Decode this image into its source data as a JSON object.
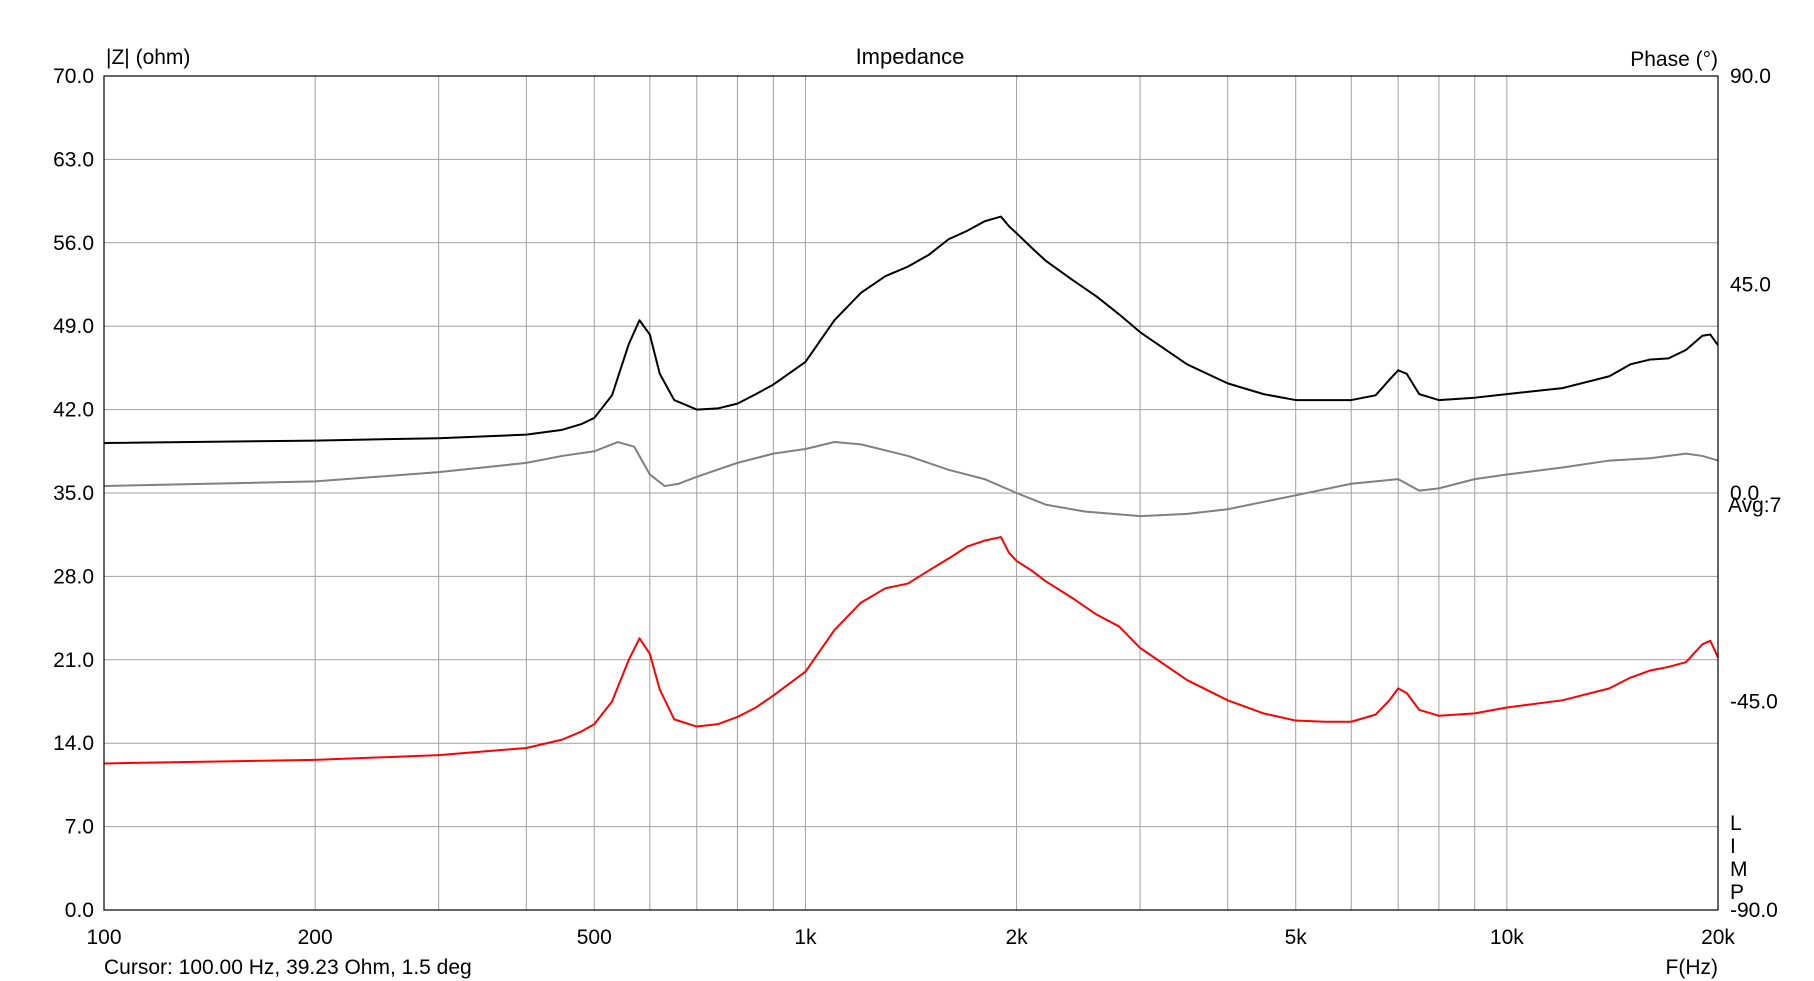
{
  "chart_data": {
    "type": "line",
    "title": "Impedance",
    "ylabel_left": "|Z| (ohm)",
    "ylabel_right": "Phase (°)",
    "xlabel": "F(Hz)",
    "x_scale": "log",
    "xlim": [
      100,
      20000
    ],
    "ylim_left": [
      0,
      70
    ],
    "ylim_right": [
      -90,
      90
    ],
    "grid": true,
    "x_ticks": [
      {
        "value": 100,
        "label": "100"
      },
      {
        "value": 200,
        "label": "200"
      },
      {
        "value": 500,
        "label": "500"
      },
      {
        "value": 1000,
        "label": "1k"
      },
      {
        "value": 2000,
        "label": "2k"
      },
      {
        "value": 5000,
        "label": "5k"
      },
      {
        "value": 10000,
        "label": "10k"
      },
      {
        "value": 20000,
        "label": "20k"
      }
    ],
    "x_minor_gridlines": [
      300,
      400,
      600,
      700,
      800,
      900,
      3000,
      4000,
      6000,
      7000,
      8000,
      9000
    ],
    "y_left_ticks": [
      "0.0",
      "7.0",
      "14.0",
      "21.0",
      "28.0",
      "35.0",
      "42.0",
      "49.0",
      "56.0",
      "63.0",
      "70.0"
    ],
    "y_right_ticks": [
      {
        "value": 90,
        "label": "90.0"
      },
      {
        "value": 45,
        "label": "45.0"
      },
      {
        "value": 0,
        "label": "0.0"
      },
      {
        "value": -45,
        "label": "-45.0"
      },
      {
        "value": -90,
        "label": "-90.0"
      }
    ],
    "avg_label": "Avg:7",
    "side_letters": [
      "L",
      "I",
      "M",
      "P"
    ],
    "cursor_text": "Cursor: 100.00 Hz, 39.23 Ohm, 1.5 deg",
    "series": [
      {
        "color": "#ff0000",
        "axis": "left",
        "x": [
          100,
          200,
          300,
          400,
          450,
          480,
          500,
          530,
          560,
          580,
          600,
          620,
          650,
          700,
          750,
          800,
          850,
          900,
          1000,
          1100,
          1200,
          1300,
          1400,
          1500,
          1600,
          1700,
          1800,
          1900,
          1950,
          2000,
          2100,
          2200,
          2400,
          2600,
          2800,
          3000,
          3500,
          4000,
          4500,
          5000,
          5500,
          6000,
          6500,
          6800,
          7000,
          7200,
          7500,
          8000,
          9000,
          10000,
          12000,
          14000,
          15000,
          16000,
          17000,
          18000,
          19000,
          19500,
          20000
        ],
        "y": [
          12.3,
          12.6,
          13.0,
          13.6,
          14.3,
          15.0,
          15.6,
          17.5,
          21.0,
          22.8,
          21.5,
          18.5,
          16.0,
          15.4,
          15.6,
          16.2,
          17.0,
          18.0,
          20.0,
          23.5,
          25.8,
          27.0,
          27.4,
          28.5,
          29.5,
          30.5,
          31.0,
          31.3,
          30.0,
          29.3,
          28.5,
          27.6,
          26.2,
          24.8,
          23.8,
          22.0,
          19.3,
          17.6,
          16.5,
          15.9,
          15.8,
          15.8,
          16.4,
          17.6,
          18.6,
          18.2,
          16.8,
          16.3,
          16.5,
          17.0,
          17.6,
          18.6,
          19.5,
          20.1,
          20.4,
          20.8,
          22.3,
          22.6,
          21.2
        ]
      },
      {
        "color": "#000000",
        "axis": "left",
        "x": [
          100,
          200,
          300,
          400,
          450,
          480,
          500,
          530,
          560,
          580,
          600,
          620,
          650,
          700,
          750,
          800,
          850,
          900,
          1000,
          1100,
          1200,
          1300,
          1400,
          1500,
          1600,
          1700,
          1800,
          1900,
          1950,
          2000,
          2100,
          2200,
          2400,
          2600,
          2800,
          3000,
          3500,
          4000,
          4500,
          5000,
          5500,
          6000,
          6500,
          6800,
          7000,
          7200,
          7500,
          8000,
          9000,
          10000,
          12000,
          14000,
          15000,
          16000,
          17000,
          18000,
          19000,
          19500,
          20000
        ],
        "y": [
          39.2,
          39.4,
          39.6,
          39.9,
          40.3,
          40.8,
          41.3,
          43.2,
          47.5,
          49.5,
          48.3,
          45.0,
          42.8,
          42.0,
          42.1,
          42.5,
          43.3,
          44.1,
          46.0,
          49.5,
          51.8,
          53.2,
          54.0,
          55.0,
          56.3,
          57.0,
          57.8,
          58.2,
          57.4,
          56.8,
          55.6,
          54.5,
          52.9,
          51.5,
          50.0,
          48.5,
          45.8,
          44.2,
          43.3,
          42.8,
          42.8,
          42.8,
          43.2,
          44.5,
          45.3,
          45.0,
          43.3,
          42.8,
          43.0,
          43.3,
          43.8,
          44.8,
          45.8,
          46.2,
          46.3,
          47.0,
          48.2,
          48.3,
          47.4
        ]
      },
      {
        "color": "#808080",
        "axis": "right",
        "x": [
          100,
          200,
          300,
          400,
          450,
          500,
          540,
          570,
          600,
          630,
          660,
          700,
          800,
          900,
          1000,
          1100,
          1200,
          1400,
          1600,
          1800,
          2000,
          2200,
          2500,
          3000,
          3500,
          4000,
          5000,
          6000,
          7000,
          7500,
          8000,
          9000,
          10000,
          12000,
          14000,
          16000,
          18000,
          19000,
          20000
        ],
        "y": [
          1.5,
          2.5,
          4.5,
          6.5,
          8.0,
          9.0,
          11.0,
          10.0,
          4.0,
          1.5,
          2.0,
          3.5,
          6.5,
          8.5,
          9.5,
          11.0,
          10.5,
          8.0,
          5.0,
          3.0,
          0.0,
          -2.5,
          -4.0,
          -5.0,
          -4.5,
          -3.5,
          -0.5,
          2.0,
          3.0,
          0.5,
          1.0,
          3.0,
          4.0,
          5.5,
          7.0,
          7.5,
          8.5,
          8.0,
          7.0
        ]
      }
    ]
  }
}
